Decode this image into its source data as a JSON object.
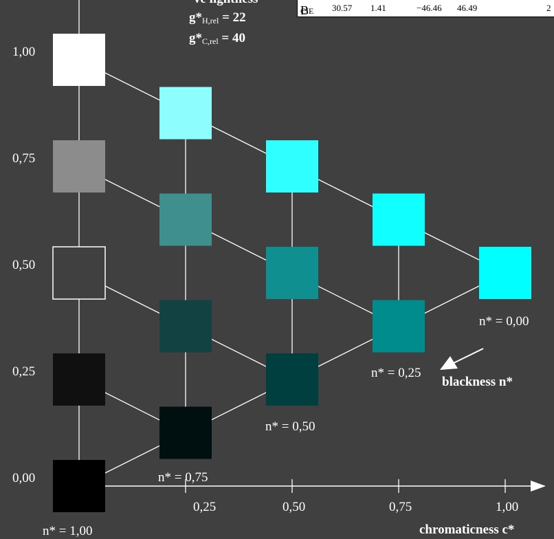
{
  "header": {
    "title_fragment": "ve lightness",
    "g_h_label": "g*",
    "g_h_sub": "H,rel",
    "g_h_value": "22",
    "g_c_label": "g*",
    "g_c_sub": "C,rel",
    "g_c_value": "40"
  },
  "info_row": {
    "name": "B",
    "name_sub": "CIE",
    "values": [
      "30.57",
      "1.41",
      "−46.46",
      "46.49",
      "2"
    ]
  },
  "y_ticks": [
    "1,00",
    "0,75",
    "0,50",
    "0,25",
    "0,00"
  ],
  "x_ticks": [
    "0,25",
    "0,50",
    "0,75",
    "1,00"
  ],
  "x_axis_label": "chromaticness c*",
  "blackness_label": "blackness n*",
  "n_labels": {
    "n000": "n* = 0,00",
    "n025": "n* = 0,25",
    "n050": "n* = 0,50",
    "n075": "n* = 0,75",
    "n100": "n* = 1,00"
  },
  "colors": {
    "background": "#404040",
    "c0": [
      "#000000",
      "#101010",
      "#404040",
      "#8c8c8c",
      "#ffffff"
    ],
    "c1": [
      "#001010",
      "#134242",
      "#3f8f8f",
      "#8dfdfd"
    ],
    "c2": [
      "#003f3f",
      "#0f8f8f",
      "#30ffff"
    ],
    "c3": [
      "#008c8c",
      "#10ffff"
    ],
    "c4": [
      "#00ffff"
    ]
  }
}
